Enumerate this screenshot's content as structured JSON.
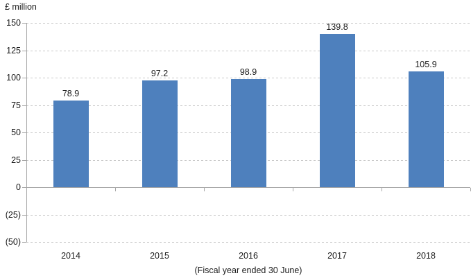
{
  "chart_data": {
    "type": "bar",
    "title": "",
    "ylabel": "£ million",
    "xlabel": "(Fiscal year ended 30 June)",
    "categories": [
      "2014",
      "2015",
      "2016",
      "2017",
      "2018"
    ],
    "values": [
      78.9,
      97.2,
      98.9,
      139.8,
      105.9
    ],
    "data_labels": [
      "78.9",
      "97.2",
      "98.9",
      "139.8",
      "105.9"
    ],
    "ylim": [
      -50,
      150
    ],
    "ytick_values": [
      150,
      125,
      100,
      75,
      50,
      25,
      0,
      -25,
      -50
    ],
    "ytick_labels": [
      "150",
      "125",
      "100",
      "75",
      "50",
      "25",
      "0",
      "(25)",
      "(50)"
    ],
    "grid": "horizontal-dashed",
    "legend": "none",
    "bar_color": "#4E80BD",
    "axis_color": "#A6A6A6",
    "gridline_color": "#C9C9C9",
    "text_color": "#1A1A1A",
    "background_color": "#FFFFFF"
  }
}
